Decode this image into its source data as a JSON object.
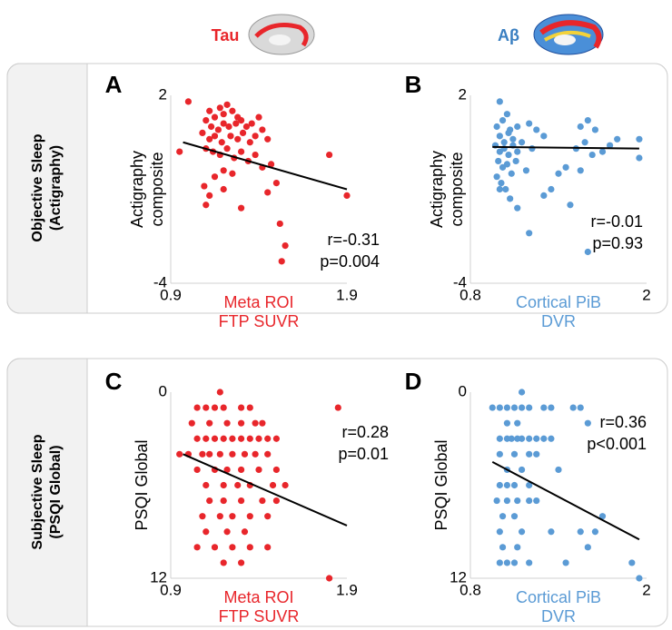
{
  "column_headers": [
    "Tau",
    "Aβ"
  ],
  "row_labels": [
    [
      "Objective Sleep",
      "(Actigraphy)"
    ],
    [
      "Subjective Sleep",
      "(PSQI Global)"
    ]
  ],
  "chart_data": [
    {
      "type": "scatter",
      "panel": "A",
      "color": "#e8262b",
      "x_label": [
        "Meta ROI",
        "FTP SUVR"
      ],
      "y_label": [
        "Actigraphy",
        "composite"
      ],
      "annotations": [
        "r=-0.31",
        "p=0.004"
      ],
      "xlim": [
        0.9,
        1.9
      ],
      "xticks": [
        0.9,
        1.9
      ],
      "ylim": [
        -4,
        2
      ],
      "yticks": [
        -4,
        2
      ],
      "x": [
        1.0,
        1.12,
        1.15,
        1.18,
        1.2,
        1.22,
        1.25,
        1.28,
        1.1,
        1.13,
        1.17,
        1.2,
        1.23,
        1.27,
        1.3,
        1.33,
        1.36,
        1.4,
        1.08,
        1.12,
        1.15,
        1.19,
        1.24,
        1.28,
        1.31,
        1.35,
        1.38,
        1.42,
        1.45,
        1.1,
        1.14,
        1.18,
        1.22,
        1.26,
        1.3,
        1.34,
        1.38,
        1.2,
        1.15,
        1.09,
        1.1,
        1.12,
        1.25,
        1.3,
        1.2,
        1.42,
        1.5,
        1.47,
        0.95,
        1.8,
        1.9,
        1.52,
        1.55,
        1.53,
        1.45
      ],
      "y": [
        1.8,
        1.5,
        1.3,
        1.6,
        1.4,
        1.7,
        1.5,
        1.3,
        1.2,
        1.0,
        0.9,
        1.1,
        1.0,
        1.1,
        1.2,
        1.0,
        1.1,
        1.3,
        0.8,
        0.6,
        0.7,
        0.5,
        0.7,
        0.6,
        0.8,
        0.5,
        0.7,
        0.9,
        0.6,
        0.3,
        0.2,
        0.1,
        0.3,
        0.0,
        0.2,
        -0.1,
        0.1,
        -0.4,
        -0.6,
        -0.9,
        -1.5,
        -1.2,
        -0.5,
        -1.6,
        -1.0,
        -0.3,
        -0.8,
        -0.2,
        0.2,
        0.1,
        -1.2,
        -2.1,
        -2.8,
        -3.3,
        -1.1
      ],
      "fit_line": {
        "color": "#000000",
        "x": [
          0.97,
          1.9
        ],
        "y": [
          0.5,
          -1.0
        ]
      }
    },
    {
      "type": "scatter",
      "panel": "B",
      "color": "#5b9bd5",
      "x_label": [
        "Cortical PiB",
        "DVR"
      ],
      "y_label": [
        "Actigraphy",
        "composite"
      ],
      "annotations": [
        "r=-0.01",
        "p=0.93"
      ],
      "xlim": [
        0.8,
        2
      ],
      "xticks": [
        0.8,
        2
      ],
      "ylim": [
        -4,
        2
      ],
      "yticks": [
        -4,
        2
      ],
      "x": [
        1.0,
        1.02,
        1.05,
        1.07,
        0.98,
        1.0,
        1.03,
        1.06,
        1.09,
        1.12,
        0.97,
        1.0,
        1.03,
        1.06,
        1.09,
        1.12,
        1.15,
        0.99,
        1.02,
        1.05,
        1.08,
        1.11,
        0.98,
        1.01,
        1.04,
        1.07,
        1.0,
        1.2,
        1.25,
        1.3,
        1.18,
        1.22,
        1.35,
        1.4,
        1.45,
        1.55,
        1.6,
        1.58,
        1.65,
        1.52,
        1.63,
        1.7,
        1.75,
        1.8,
        1.55,
        1.12,
        1.48,
        1.2,
        1.3,
        1.6,
        1.95,
        1.95
      ],
      "y": [
        1.8,
        1.2,
        1.4,
        0.9,
        1.0,
        0.7,
        0.5,
        0.8,
        0.6,
        1.0,
        0.4,
        0.2,
        0.3,
        0.1,
        0.4,
        0.2,
        0.5,
        -0.1,
        -0.3,
        -0.2,
        -0.5,
        -0.1,
        -0.6,
        -0.8,
        -1.0,
        -1.3,
        -1.0,
        1.1,
        0.9,
        0.7,
        -0.4,
        0.3,
        -1.0,
        -0.5,
        -0.3,
        1.0,
        1.2,
        0.5,
        0.9,
        0.3,
        0.1,
        0.2,
        0.4,
        0.6,
        -0.4,
        -1.6,
        -1.5,
        -2.4,
        -1.2,
        -3.0,
        0.6,
        0.0
      ],
      "fit_line": {
        "color": "#000000",
        "x": [
          0.95,
          1.95
        ],
        "y": [
          0.35,
          0.3
        ]
      }
    },
    {
      "type": "scatter",
      "panel": "C",
      "color": "#e8262b",
      "x_label": [
        "Meta ROI",
        "FTP SUVR"
      ],
      "y_label": [
        "PSQI Global"
      ],
      "annotations": [
        "r=0.28",
        "p=0.01"
      ],
      "xlim": [
        0.9,
        1.9
      ],
      "xticks": [
        0.9,
        1.9
      ],
      "ylim": [
        12,
        0
      ],
      "yticks": [
        0,
        12
      ],
      "x": [
        1.18,
        1.05,
        1.1,
        1.15,
        1.2,
        1.3,
        1.35,
        1.85,
        1.02,
        1.12,
        1.22,
        1.3,
        1.38,
        1.42,
        1.05,
        1.1,
        1.15,
        1.2,
        1.25,
        1.3,
        1.35,
        1.4,
        1.45,
        1.5,
        0.95,
        1.0,
        1.08,
        1.12,
        1.18,
        1.25,
        1.32,
        1.38,
        1.45,
        1.05,
        1.15,
        1.22,
        1.3,
        1.4,
        1.5,
        1.1,
        1.2,
        1.28,
        1.35,
        1.48,
        1.55,
        1.12,
        1.2,
        1.3,
        1.42,
        1.5,
        1.08,
        1.18,
        1.25,
        1.35,
        1.45,
        1.1,
        1.22,
        1.32,
        1.05,
        1.15,
        1.25,
        1.35,
        1.45,
        1.2,
        1.3,
        1.8
      ],
      "y": [
        0,
        1,
        1,
        1,
        1,
        1,
        1,
        1,
        2,
        2,
        2,
        2,
        2,
        2,
        3,
        3,
        3,
        3,
        3,
        3,
        3,
        3,
        3,
        3,
        4,
        4,
        4,
        4,
        4,
        4,
        4,
        4,
        4,
        5,
        5,
        5,
        5,
        5,
        5,
        6,
        6,
        6,
        6,
        6,
        6,
        7,
        7,
        7,
        7,
        7,
        8,
        8,
        8,
        8,
        8,
        9,
        9,
        9,
        10,
        10,
        10,
        10,
        10,
        11,
        11,
        12
      ],
      "fit_line": {
        "color": "#000000",
        "x": [
          0.97,
          1.9
        ],
        "y": [
          4,
          8.6
        ]
      }
    },
    {
      "type": "scatter",
      "panel": "D",
      "color": "#5b9bd5",
      "x_label": [
        "Cortical PiB",
        "DVR"
      ],
      "y_label": [
        "PSQI Global"
      ],
      "annotations": [
        "r=0.36",
        "p<0.001"
      ],
      "xlim": [
        0.8,
        2
      ],
      "xticks": [
        0.8,
        2
      ],
      "ylim": [
        12,
        0
      ],
      "yticks": [
        0,
        12
      ],
      "x": [
        1.15,
        0.95,
        1.0,
        1.05,
        1.1,
        1.15,
        1.2,
        1.3,
        1.35,
        1.5,
        1.55,
        1.05,
        1.12,
        1.6,
        1.0,
        1.05,
        1.08,
        1.12,
        1.15,
        1.2,
        1.25,
        1.3,
        1.35,
        1.0,
        1.1,
        1.2,
        1.25,
        1.05,
        1.15,
        1.4,
        1.0,
        1.05,
        1.1,
        1.2,
        0.98,
        1.05,
        1.12,
        1.2,
        1.25,
        1.02,
        1.1,
        1.7,
        1.0,
        1.15,
        1.35,
        1.55,
        1.65,
        1.02,
        1.12,
        1.6,
        1.0,
        1.05,
        1.1,
        1.2,
        1.45,
        1.9,
        1.95
      ],
      "y": [
        0,
        1,
        1,
        1,
        1,
        1,
        1,
        1,
        1,
        1,
        1,
        2,
        2,
        2,
        3,
        3,
        3,
        3,
        3,
        3,
        3,
        3,
        3,
        4,
        4,
        4,
        4,
        5,
        5,
        5,
        6,
        6,
        6,
        6,
        7,
        7,
        7,
        7,
        7,
        8,
        8,
        8,
        9,
        9,
        9,
        9,
        9,
        10,
        10,
        10,
        11,
        11,
        11,
        11,
        11,
        11,
        12
      ],
      "fit_line": {
        "color": "#000000",
        "x": [
          0.95,
          1.95
        ],
        "y": [
          4.5,
          9.5
        ]
      }
    }
  ]
}
